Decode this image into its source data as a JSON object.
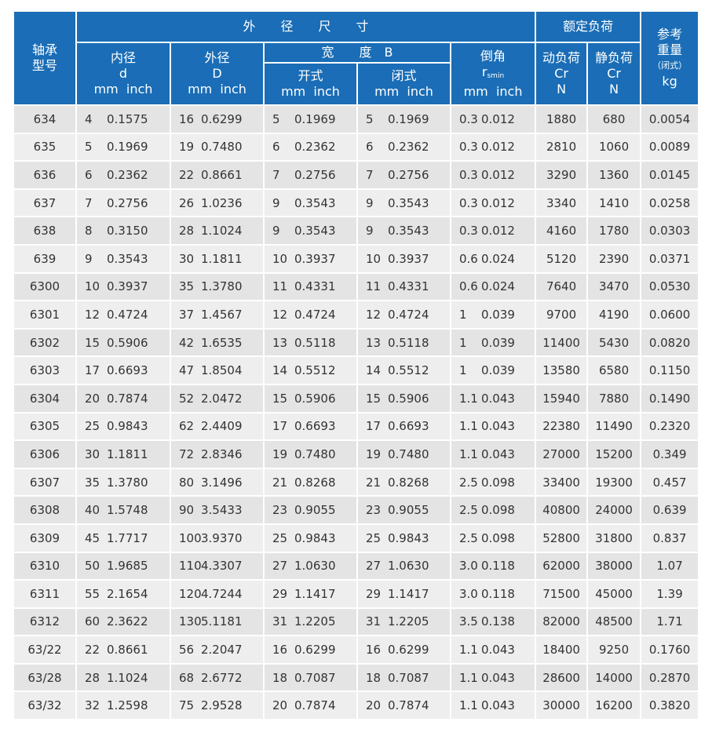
{
  "header": {
    "model": "轴承\n型号",
    "outer_dims": "外　　径　　尺　　寸",
    "rated_load": "额定负荷",
    "ref_weight": "参考\n重量",
    "ref_weight_note": "（闭式）",
    "ref_weight_unit": "kg",
    "inner_dia": "内径",
    "inner_sym": "d",
    "outer_dia": "外径",
    "outer_sym": "D",
    "width": "宽　　度　B",
    "open": "开式",
    "closed": "闭式",
    "chamfer": "倒角",
    "chamfer_sym": "r",
    "chamfer_sub": "smin",
    "units": "mm  inch",
    "dynamic": "动负荷",
    "static": "静负荷",
    "cr": "Cr",
    "n": "N"
  },
  "rows": [
    [
      "634",
      "4",
      "0.1575",
      "16",
      "0.6299",
      "5",
      "0.1969",
      "5",
      "0.1969",
      "0.3",
      "0.012",
      "1880",
      "680",
      "0.0054"
    ],
    [
      "635",
      "5",
      "0.1969",
      "19",
      "0.7480",
      "6",
      "0.2362",
      "6",
      "0.2362",
      "0.3",
      "0.012",
      "2810",
      "1060",
      "0.0089"
    ],
    [
      "636",
      "6",
      "0.2362",
      "22",
      "0.8661",
      "7",
      "0.2756",
      "7",
      "0.2756",
      "0.3",
      "0.012",
      "3290",
      "1360",
      "0.0145"
    ],
    [
      "637",
      "7",
      "0.2756",
      "26",
      "1.0236",
      "9",
      "0.3543",
      "9",
      "0.3543",
      "0.3",
      "0.012",
      "3340",
      "1410",
      "0.0258"
    ],
    [
      "638",
      "8",
      "0.3150",
      "28",
      "1.1024",
      "9",
      "0.3543",
      "9",
      "0.3543",
      "0.3",
      "0.012",
      "4160",
      "1780",
      "0.0303"
    ],
    [
      "639",
      "9",
      "0.3543",
      "30",
      "1.1811",
      "10",
      "0.3937",
      "10",
      "0.3937",
      "0.6",
      "0.024",
      "5120",
      "2390",
      "0.0371"
    ],
    [
      "6300",
      "10",
      "0.3937",
      "35",
      "1.3780",
      "11",
      "0.4331",
      "11",
      "0.4331",
      "0.6",
      "0.024",
      "7640",
      "3470",
      "0.0530"
    ],
    [
      "6301",
      "12",
      "0.4724",
      "37",
      "1.4567",
      "12",
      "0.4724",
      "12",
      "0.4724",
      "1",
      "0.039",
      "9700",
      "4190",
      "0.0600"
    ],
    [
      "6302",
      "15",
      "0.5906",
      "42",
      "1.6535",
      "13",
      "0.5118",
      "13",
      "0.5118",
      "1",
      "0.039",
      "11400",
      "5430",
      "0.0820"
    ],
    [
      "6303",
      "17",
      "0.6693",
      "47",
      "1.8504",
      "14",
      "0.5512",
      "14",
      "0.5512",
      "1",
      "0.039",
      "13580",
      "6580",
      "0.1150"
    ],
    [
      "6304",
      "20",
      "0.7874",
      "52",
      "2.0472",
      "15",
      "0.5906",
      "15",
      "0.5906",
      "1.1",
      "0.043",
      "15940",
      "7880",
      "0.1490"
    ],
    [
      "6305",
      "25",
      "0.9843",
      "62",
      "2.4409",
      "17",
      "0.6693",
      "17",
      "0.6693",
      "1.1",
      "0.043",
      "22380",
      "11490",
      "0.2320"
    ],
    [
      "6306",
      "30",
      "1.1811",
      "72",
      "2.8346",
      "19",
      "0.7480",
      "19",
      "0.7480",
      "1.1",
      "0.043",
      "27000",
      "15200",
      "0.349"
    ],
    [
      "6307",
      "35",
      "1.3780",
      "80",
      "3.1496",
      "21",
      "0.8268",
      "21",
      "0.8268",
      "2.5",
      "0.098",
      "33400",
      "19300",
      "0.457"
    ],
    [
      "6308",
      "40",
      "1.5748",
      "90",
      "3.5433",
      "23",
      "0.9055",
      "23",
      "0.9055",
      "2.5",
      "0.098",
      "40800",
      "24000",
      "0.639"
    ],
    [
      "6309",
      "45",
      "1.7717",
      "100",
      "3.9370",
      "25",
      "0.9843",
      "25",
      "0.9843",
      "2.5",
      "0.098",
      "52800",
      "31800",
      "0.837"
    ],
    [
      "6310",
      "50",
      "1.9685",
      "110",
      "4.3307",
      "27",
      "1.0630",
      "27",
      "1.0630",
      "3.0",
      "0.118",
      "62000",
      "38000",
      "1.07"
    ],
    [
      "6311",
      "55",
      "2.1654",
      "120",
      "4.7244",
      "29",
      "1.1417",
      "29",
      "1.1417",
      "3.0",
      "0.118",
      "71500",
      "45000",
      "1.39"
    ],
    [
      "6312",
      "60",
      "2.3622",
      "130",
      "5.1181",
      "31",
      "1.2205",
      "31",
      "1.2205",
      "3.5",
      "0.138",
      "82000",
      "48500",
      "1.71"
    ],
    [
      "63/22",
      "22",
      "0.8661",
      "56",
      "2.2047",
      "16",
      "0.6299",
      "16",
      "0.6299",
      "1.1",
      "0.043",
      "18400",
      "9250",
      "0.1760"
    ],
    [
      "63/28",
      "28",
      "1.1024",
      "68",
      "2.6772",
      "18",
      "0.7087",
      "18",
      "0.7087",
      "1.1",
      "0.043",
      "28600",
      "14000",
      "0.2870"
    ],
    [
      "63/32",
      "32",
      "1.2598",
      "75",
      "2.9528",
      "20",
      "0.7874",
      "20",
      "0.7874",
      "1.1",
      "0.043",
      "30000",
      "16200",
      "0.3820"
    ]
  ],
  "colors": {
    "header_bg": "#1a6db6",
    "row_odd": "#e4e4e4",
    "row_even": "#eeeeee"
  }
}
